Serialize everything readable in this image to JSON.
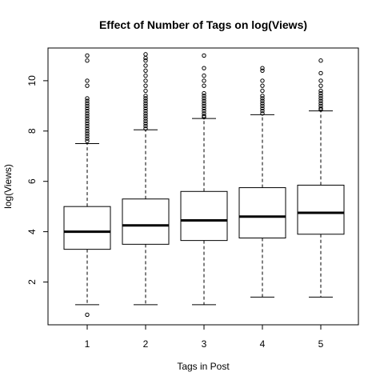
{
  "chart_data": {
    "type": "boxplot",
    "title": "Effect of Number of Tags on log(Views)",
    "xlabel": "Tags in Post",
    "ylabel": "log(Views)",
    "categories": [
      "1",
      "2",
      "3",
      "4",
      "5"
    ],
    "ylim": [
      0.3,
      11.3
    ],
    "yticks": [
      2,
      4,
      6,
      8,
      10
    ],
    "grid": false,
    "boxes": [
      {
        "category": "1",
        "whisker_low": 1.1,
        "q1": 3.3,
        "median": 4.0,
        "q3": 5.0,
        "whisker_high": 7.5,
        "outliers": [
          0.7,
          7.6,
          7.7,
          7.8,
          7.9,
          8.0,
          8.1,
          8.2,
          8.3,
          8.4,
          8.5,
          8.6,
          8.7,
          8.8,
          8.9,
          9.0,
          9.1,
          9.2,
          9.3,
          9.8,
          10.0,
          10.8,
          11.0
        ]
      },
      {
        "category": "2",
        "whisker_low": 1.1,
        "q1": 3.5,
        "median": 4.25,
        "q3": 5.3,
        "whisker_high": 8.05,
        "outliers": [
          8.1,
          8.2,
          8.3,
          8.4,
          8.5,
          8.6,
          8.7,
          8.8,
          8.9,
          9.0,
          9.1,
          9.2,
          9.3,
          9.4,
          9.6,
          9.8,
          10.0,
          10.2,
          10.4,
          10.6,
          10.8,
          10.9,
          11.05
        ]
      },
      {
        "category": "3",
        "whisker_low": 1.1,
        "q1": 3.65,
        "median": 4.45,
        "q3": 5.6,
        "whisker_high": 8.5,
        "outliers": [
          8.55,
          8.6,
          8.7,
          8.8,
          8.9,
          9.0,
          9.1,
          9.2,
          9.3,
          9.4,
          9.5,
          9.8,
          10.0,
          10.2,
          10.5,
          11.0
        ]
      },
      {
        "category": "4",
        "whisker_low": 1.4,
        "q1": 3.75,
        "median": 4.6,
        "q3": 5.75,
        "whisker_high": 8.65,
        "outliers": [
          8.7,
          8.8,
          8.9,
          9.0,
          9.1,
          9.2,
          9.3,
          9.4,
          9.6,
          9.8,
          10.0,
          10.4,
          10.5
        ]
      },
      {
        "category": "5",
        "whisker_low": 1.4,
        "q1": 3.9,
        "median": 4.75,
        "q3": 5.85,
        "whisker_high": 8.8,
        "outliers": [
          8.85,
          8.9,
          9.0,
          9.1,
          9.2,
          9.3,
          9.4,
          9.5,
          9.6,
          9.8,
          10.0,
          10.3,
          10.8
        ]
      }
    ]
  }
}
